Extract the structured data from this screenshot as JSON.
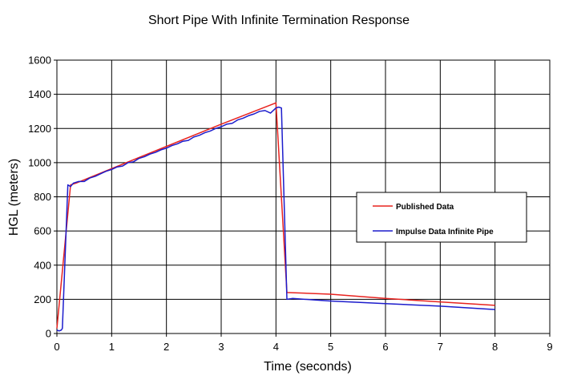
{
  "chart_data": {
    "type": "line",
    "title": "Short Pipe With Infinite Termination Response",
    "xlabel": "Time (seconds)",
    "ylabel": "HGL (meters)",
    "xlim": [
      0,
      9
    ],
    "ylim": [
      0,
      1600
    ],
    "xticks": [
      0,
      1,
      2,
      3,
      4,
      5,
      6,
      7,
      8,
      9
    ],
    "yticks": [
      0,
      200,
      400,
      600,
      800,
      1000,
      1200,
      1400,
      1600
    ],
    "grid": true,
    "legend_position": "right-middle",
    "series": [
      {
        "name": "Published Data",
        "color": "#e8231f",
        "x": [
          0.0,
          0.25,
          0.35,
          1.0,
          2.0,
          3.0,
          4.0,
          4.2,
          5.0,
          6.0,
          7.0,
          8.0
        ],
        "y": [
          30,
          870,
          880,
          965,
          1095,
          1225,
          1350,
          240,
          230,
          205,
          185,
          165
        ]
      },
      {
        "name": "Impulse Data Infinite Pipe",
        "color": "#1c1ccc",
        "x": [
          0.0,
          0.04,
          0.08,
          0.1,
          0.2,
          0.25,
          0.3,
          0.4,
          0.5,
          0.6,
          0.7,
          0.8,
          0.9,
          1.0,
          1.1,
          1.2,
          1.3,
          1.4,
          1.5,
          1.6,
          1.7,
          1.8,
          1.9,
          2.0,
          2.1,
          2.2,
          2.3,
          2.4,
          2.5,
          2.6,
          2.7,
          2.8,
          2.9,
          3.0,
          3.1,
          3.2,
          3.3,
          3.4,
          3.5,
          3.6,
          3.7,
          3.8,
          3.9,
          4.0,
          4.05,
          4.1,
          4.2,
          4.3,
          5.0,
          6.0,
          7.0,
          8.0
        ],
        "y": [
          20,
          15,
          20,
          30,
          870,
          860,
          880,
          890,
          890,
          910,
          920,
          935,
          950,
          960,
          975,
          980,
          1000,
          1005,
          1025,
          1035,
          1050,
          1060,
          1075,
          1085,
          1100,
          1110,
          1125,
          1130,
          1150,
          1160,
          1175,
          1185,
          1200,
          1210,
          1225,
          1230,
          1250,
          1260,
          1275,
          1285,
          1300,
          1305,
          1290,
          1320,
          1325,
          1320,
          200,
          205,
          190,
          175,
          160,
          140
        ]
      }
    ]
  }
}
